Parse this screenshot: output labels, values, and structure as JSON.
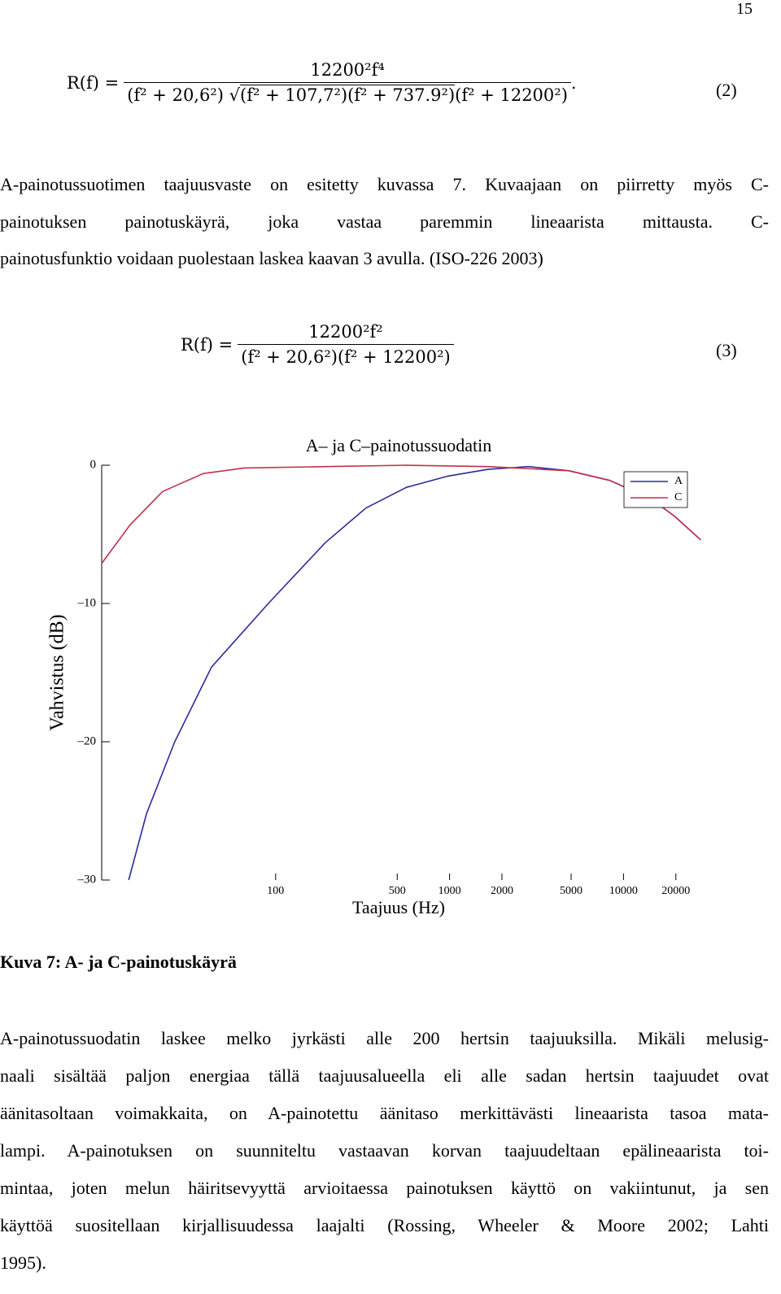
{
  "page_number": "15",
  "equations": [
    {
      "lhs": "R(f) =",
      "numerator": "12200²f⁴",
      "denominator_before": "(f² + 20,6²)",
      "radicand": "(f² + 107,7²)(f² + 737.9²)",
      "denominator_after": "(f² + 12200²)",
      "terminator": ".",
      "number": "(2)"
    },
    {
      "lhs": "R(f) =",
      "numerator": "12200²f²",
      "denominator": "(f² + 20,6²)(f² + 12200²)",
      "number": "(3)"
    }
  ],
  "paragraphs": [
    [
      "A-painotussuotimen taajuusvaste on esitetty kuvassa 7. Kuvaajaan on piirretty myös C-",
      "painotuksen painotuskäyrä, joka vastaa paremmin lineaarista mittausta. C-",
      "painotusfunktio voidaan puolestaan laskea kaavan 3 avulla. (ISO-226 2003)"
    ],
    [
      "A-painotussuodatin laskee melko jyrkästi alle 200 hertsin taajuuksilla. Mikäli melusig-",
      "naali sisältää paljon energiaa tällä taajuusalueella eli alle sadan hertsin taajuudet ovat",
      "äänitasoltaan voimakkaita, on A-painotettu äänitaso merkittävästi lineaarista tasoa mata-",
      "lampi. A-painotuksen on suunniteltu vastaavan korvan taajuudeltaan epälineaarista toi-",
      "mintaa, joten melun häiritsevyyttä arvioitaessa painotuksen käyttö on vakiintunut, ja sen",
      "käyttöä suositellaan kirjallisuudessa laajalti (Rossing, Wheeler & Moore 2002; Lahti",
      "1995)."
    ]
  ],
  "caption": "Kuva 7: A- ja C-painotuskäyrä",
  "chart_data": {
    "type": "line",
    "title": "A– ja C–painotussuodatin",
    "x_label": "Taajuus (Hz)",
    "y_label": "Vahvistus (dB)",
    "x_scale": "log",
    "xlim": [
      10,
      28000
    ],
    "xticks": [
      100,
      500,
      1000,
      2000,
      5000,
      10000,
      20000
    ],
    "ylim": [
      -30,
      0
    ],
    "yticks": [
      0,
      {
        "value": -10,
        "label": "–10"
      },
      {
        "value": -20,
        "label": "–20"
      },
      {
        "value": -30,
        "label": "–30"
      }
    ],
    "legend": "upper right",
    "series": [
      {
        "name": "A",
        "color": "#2b2b9c",
        "x": [
          14.3,
          18.1,
          26.3,
          42.8,
          90.8,
          193,
          330,
          565,
          968,
          1660,
          2840,
          4860,
          8340,
          14270,
          19700,
          27800
        ],
        "values": [
          -30,
          -25.2,
          -20,
          -14.6,
          -10,
          -5.6,
          -3.1,
          -1.6,
          -0.8,
          -0.3,
          -0.1,
          -0.4,
          -1.1,
          -2.4,
          -3.7,
          -5.4
        ]
      },
      {
        "name": "C",
        "color": "#c0304a",
        "x": [
          10,
          14.6,
          22.4,
          38.4,
          65.8,
          193,
          565,
          1660,
          4860,
          8340,
          14270,
          19700,
          27800
        ],
        "values": [
          -7.1,
          -4.3,
          -1.9,
          -0.6,
          -0.2,
          -0.1,
          0,
          -0.1,
          -0.4,
          -1.1,
          -2.4,
          -3.7,
          -5.4
        ]
      }
    ]
  }
}
